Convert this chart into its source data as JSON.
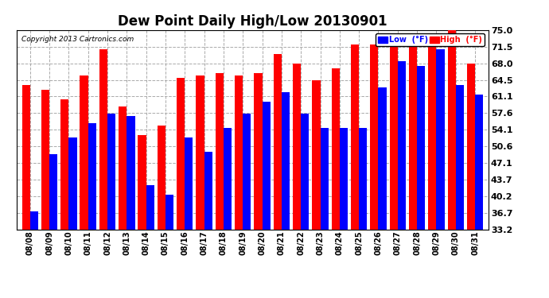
{
  "title": "Dew Point Daily High/Low 20130901",
  "copyright": "Copyright 2013 Cartronics.com",
  "dates": [
    "08/08",
    "08/09",
    "08/10",
    "08/11",
    "08/12",
    "08/13",
    "08/14",
    "08/15",
    "08/16",
    "08/17",
    "08/18",
    "08/19",
    "08/20",
    "08/21",
    "08/22",
    "08/23",
    "08/24",
    "08/25",
    "08/26",
    "08/27",
    "08/28",
    "08/29",
    "08/30",
    "08/31"
  ],
  "high": [
    63.5,
    62.5,
    60.5,
    65.5,
    71.0,
    59.0,
    53.0,
    55.0,
    65.0,
    65.5,
    66.0,
    65.5,
    66.0,
    70.0,
    68.0,
    64.5,
    67.0,
    72.0,
    72.0,
    72.5,
    72.0,
    71.5,
    75.0,
    68.0
  ],
  "low": [
    37.0,
    49.0,
    52.5,
    55.5,
    57.5,
    57.0,
    42.5,
    40.5,
    52.5,
    49.5,
    54.5,
    57.5,
    60.0,
    62.0,
    57.5,
    54.5,
    54.5,
    54.5,
    63.0,
    68.5,
    67.5,
    71.0,
    63.5,
    61.5
  ],
  "high_color": "#ff0000",
  "low_color": "#0000ff",
  "bg_color": "#ffffff",
  "grid_color": "#aaaaaa",
  "title_fontsize": 12,
  "yticks": [
    33.2,
    36.7,
    40.2,
    43.7,
    47.1,
    50.6,
    54.1,
    57.6,
    61.1,
    64.5,
    68.0,
    71.5,
    75.0
  ],
  "ylim_min": 33.2,
  "ylim_max": 75.0,
  "legend_low_label": "Low  (°F)",
  "legend_high_label": "High  (°F)"
}
